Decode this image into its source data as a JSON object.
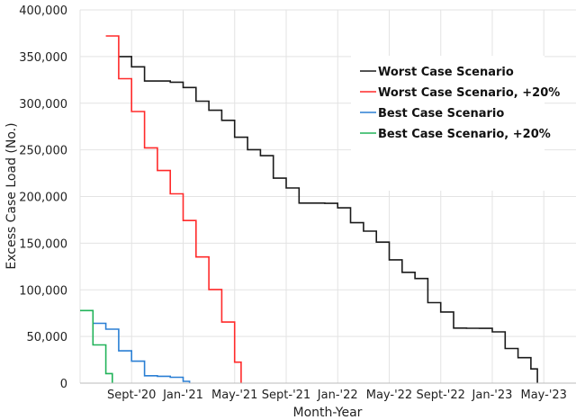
{
  "chart_data": {
    "type": "line",
    "step": true,
    "title": "",
    "xlabel": "Month-Year",
    "ylabel": "Excess Case Load (No.)",
    "x_unit": "months relative to Sept 2020",
    "xlim": [
      -4,
      34.5
    ],
    "ylim": [
      0,
      400000
    ],
    "grid": true,
    "legend_position": "top-right",
    "y_ticks": [
      0,
      50000,
      100000,
      150000,
      200000,
      250000,
      300000,
      350000,
      400000
    ],
    "y_tick_labels": [
      "0",
      "50,000",
      "100,000",
      "150,000",
      "200,000",
      "250,000",
      "300,000",
      "350,000",
      "400,000"
    ],
    "x_ticks": [
      0,
      4,
      8,
      12,
      16,
      20,
      24,
      28,
      32
    ],
    "x_tick_labels": [
      "Sept-'20",
      "Jan-'21",
      "May-'21",
      "Sept-'21",
      "Jan-'22",
      "May-'22",
      "Sept-'22",
      "Jan-'23",
      "May-'23"
    ],
    "series": [
      {
        "name": "Worst Case Scenario",
        "color": "#1a1a1a",
        "start": -1,
        "end": 31.5,
        "values": [
          350000,
          339000,
          323800,
          323800,
          322500,
          316800,
          302200,
          292400,
          281600,
          263500,
          250200,
          243800,
          219700,
          209200,
          193000,
          193000,
          192700,
          187900,
          172000,
          162900,
          151100,
          132100,
          118700,
          112100,
          86300,
          76200,
          59000,
          58800,
          58700,
          54900,
          37100,
          27300,
          15200
        ]
      },
      {
        "name": "Worst Case Scenario, +20%",
        "color": "#ff2a2a",
        "start": -2,
        "end": 8.5,
        "values": [
          372000,
          326300,
          291100,
          252100,
          227900,
          202900,
          174300,
          135200,
          100300,
          65400,
          22500
        ]
      },
      {
        "name": "Best Case Scenario",
        "color": "#2a7fd4",
        "start": -3,
        "end": 4.5,
        "values": [
          64100,
          57800,
          34600,
          23500,
          7900,
          7300,
          6300,
          1900
        ]
      },
      {
        "name": "Best Case Scenario, +20%",
        "color": "#22b35a",
        "start": -4,
        "end": -1.5,
        "values": [
          77800,
          41000,
          10200
        ]
      }
    ]
  }
}
